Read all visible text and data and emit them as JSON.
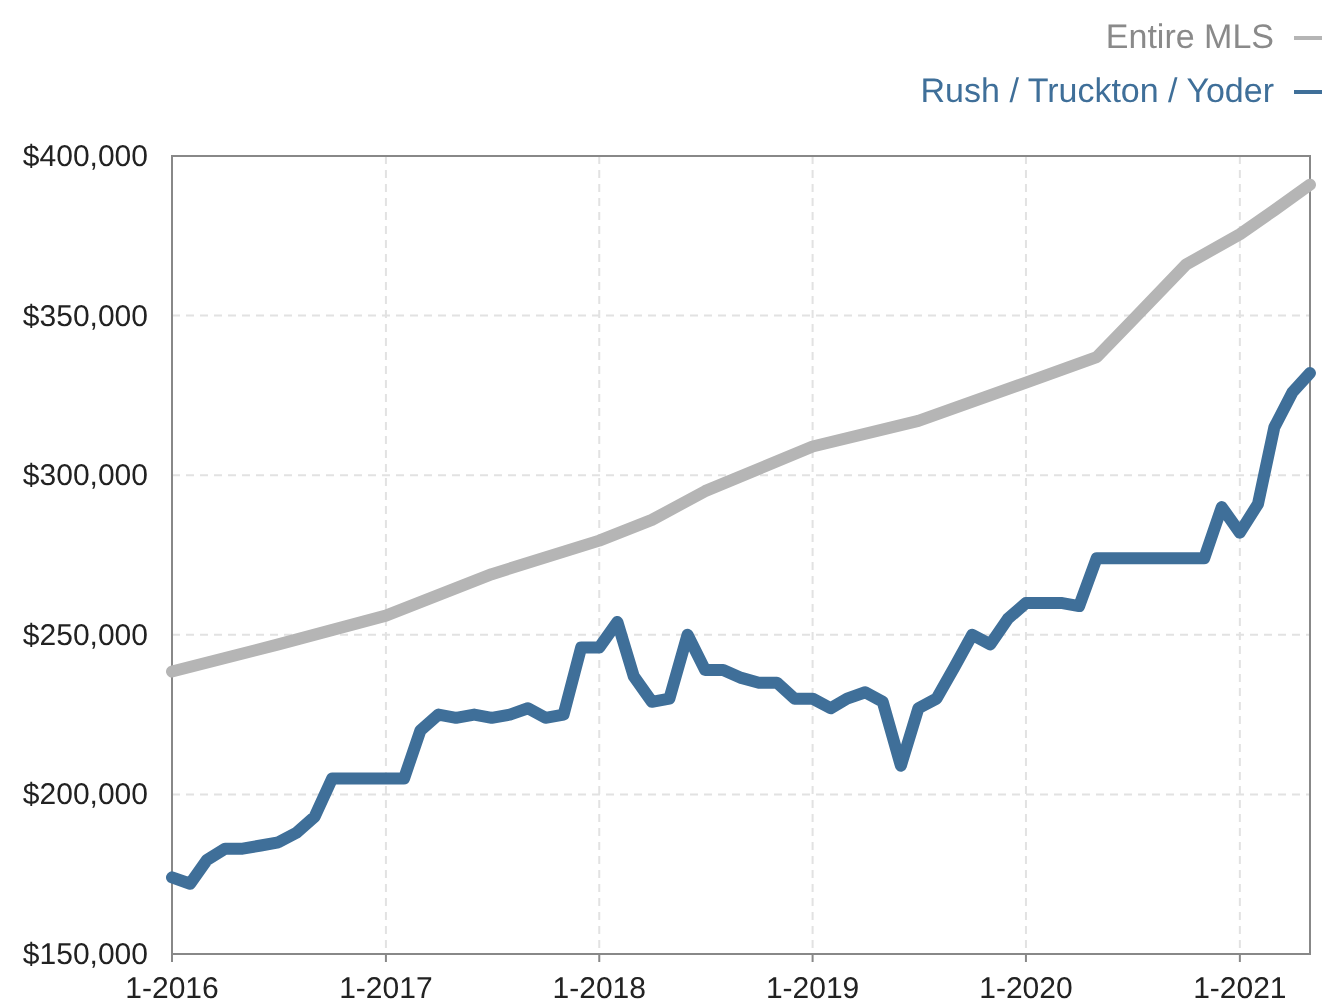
{
  "chart_data": {
    "type": "line",
    "legend": "top right",
    "grid": true,
    "line_style": "solid",
    "marker": "none",
    "xlim": [
      "2016-01",
      "2021-05"
    ],
    "xticks": [
      {
        "value": "2016-01",
        "label": "1-2016"
      },
      {
        "value": "2017-01",
        "label": "1-2017"
      },
      {
        "value": "2018-01",
        "label": "1-2018"
      },
      {
        "value": "2019-01",
        "label": "1-2019"
      },
      {
        "value": "2020-01",
        "label": "1-2020"
      },
      {
        "value": "2021-01",
        "label": "1-2021"
      }
    ],
    "ylim": [
      150000,
      400000
    ],
    "yticks": [
      {
        "value": 150000,
        "label": "$150,000"
      },
      {
        "value": 200000,
        "label": "$200,000"
      },
      {
        "value": 250000,
        "label": "$250,000"
      },
      {
        "value": 300000,
        "label": "$300,000"
      },
      {
        "value": 350000,
        "label": "$350,000"
      },
      {
        "value": 400000,
        "label": "$400,000"
      }
    ],
    "series": [
      {
        "name": "Entire MLS",
        "color": "#b5b5b5",
        "x": [
          "2016-01",
          "2016-07",
          "2017-01",
          "2017-07",
          "2018-01",
          "2018-04",
          "2018-07",
          "2019-01",
          "2019-07",
          "2020-01",
          "2020-05",
          "2020-07",
          "2020-10",
          "2021-01",
          "2021-03",
          "2021-05"
        ],
        "values": [
          238500,
          247000,
          256000,
          269000,
          279500,
          286000,
          295000,
          309000,
          317000,
          329000,
          337000,
          348500,
          366000,
          375500,
          383000,
          391000
        ]
      },
      {
        "name": "Rush / Truckton / Yoder",
        "color": "#3f6f99",
        "x": [
          "2016-01",
          "2016-02",
          "2016-03",
          "2016-04",
          "2016-05",
          "2016-06",
          "2016-07",
          "2016-08",
          "2016-09",
          "2016-10",
          "2016-11",
          "2016-12",
          "2017-01",
          "2017-02",
          "2017-03",
          "2017-04",
          "2017-05",
          "2017-06",
          "2017-07",
          "2017-08",
          "2017-09",
          "2017-10",
          "2017-11",
          "2017-12",
          "2018-01",
          "2018-02",
          "2018-03",
          "2018-04",
          "2018-05",
          "2018-06",
          "2018-07",
          "2018-08",
          "2018-09",
          "2018-10",
          "2018-11",
          "2018-12",
          "2019-01",
          "2019-02",
          "2019-03",
          "2019-04",
          "2019-05",
          "2019-06",
          "2019-07",
          "2019-08",
          "2019-09",
          "2019-10",
          "2019-11",
          "2019-12",
          "2020-01",
          "2020-02",
          "2020-03",
          "2020-04",
          "2020-05",
          "2020-06",
          "2020-07",
          "2020-08",
          "2020-09",
          "2020-10",
          "2020-11",
          "2020-12",
          "2021-01",
          "2021-02",
          "2021-03",
          "2021-04",
          "2021-05"
        ],
        "values": [
          174000,
          172000,
          179500,
          183000,
          183000,
          184000,
          185000,
          188000,
          193000,
          205000,
          205000,
          205000,
          205000,
          205000,
          220000,
          225000,
          224000,
          225000,
          224000,
          225000,
          227000,
          224000,
          225000,
          246000,
          246000,
          254000,
          237000,
          229000,
          230000,
          250000,
          239000,
          239000,
          236500,
          235000,
          235000,
          230000,
          230000,
          227000,
          230000,
          232000,
          229000,
          209000,
          227000,
          230000,
          240000,
          250000,
          247000,
          255000,
          260000,
          260000,
          260000,
          259000,
          274000,
          274000,
          274000,
          274000,
          274000,
          274000,
          274000,
          290000,
          282000,
          291000,
          315000,
          326000,
          332000
        ]
      }
    ]
  }
}
